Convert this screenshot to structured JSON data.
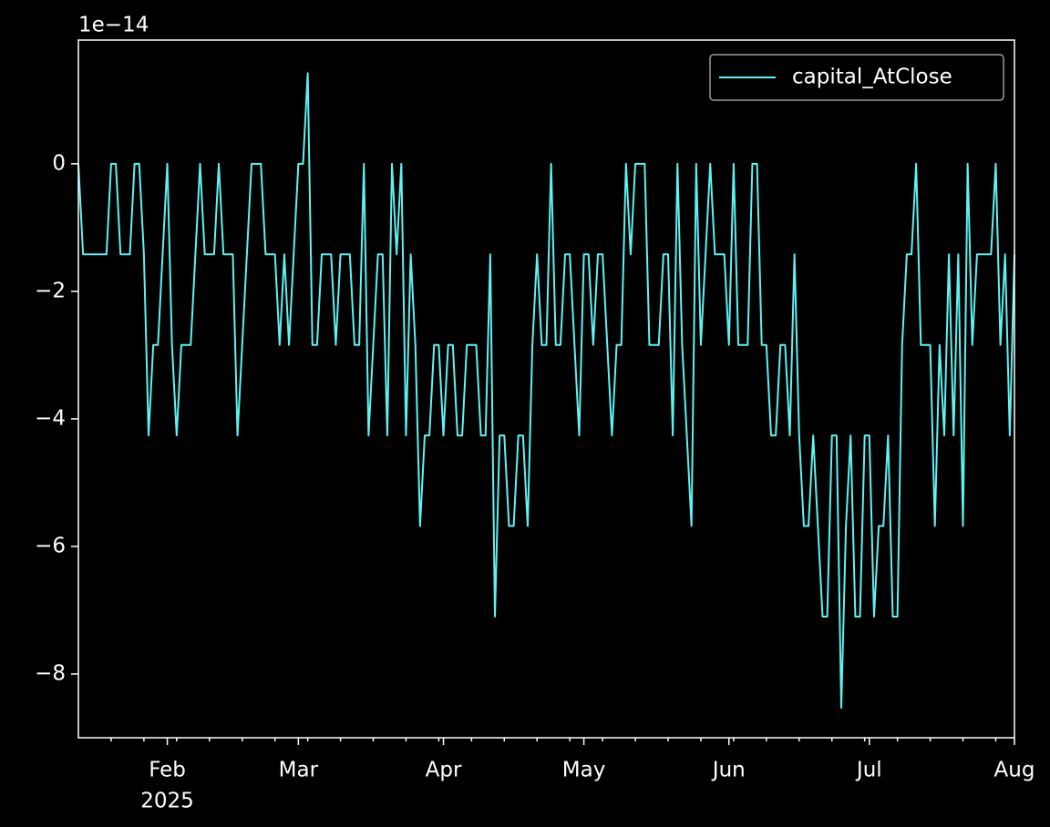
{
  "chart_data": {
    "type": "line",
    "y_offset_label": "1e−14",
    "x_offset_label": "2025",
    "legend": "upper right",
    "grid": false,
    "x": [
      "2025-01-13",
      "2025-01-14",
      "2025-01-15",
      "2025-01-16",
      "2025-01-17",
      "2025-01-18",
      "2025-01-19",
      "2025-01-20",
      "2025-01-21",
      "2025-01-22",
      "2025-01-23",
      "2025-01-24",
      "2025-01-25",
      "2025-01-26",
      "2025-01-27",
      "2025-01-28",
      "2025-01-29",
      "2025-01-30",
      "2025-01-31",
      "2025-02-01",
      "2025-02-02",
      "2025-02-03",
      "2025-02-04",
      "2025-02-05",
      "2025-02-06",
      "2025-02-07",
      "2025-02-08",
      "2025-02-09",
      "2025-02-10",
      "2025-02-11",
      "2025-02-12",
      "2025-02-13",
      "2025-02-14",
      "2025-02-15",
      "2025-02-16",
      "2025-02-17",
      "2025-02-18",
      "2025-02-19",
      "2025-02-20",
      "2025-02-21",
      "2025-02-22",
      "2025-02-23",
      "2025-02-24",
      "2025-02-25",
      "2025-02-26",
      "2025-02-27",
      "2025-02-28",
      "2025-03-01",
      "2025-03-02",
      "2025-03-03",
      "2025-03-04",
      "2025-03-05",
      "2025-03-06",
      "2025-03-07",
      "2025-03-08",
      "2025-03-09",
      "2025-03-10",
      "2025-03-11",
      "2025-03-12",
      "2025-03-13",
      "2025-03-14",
      "2025-03-15",
      "2025-03-16",
      "2025-03-17",
      "2025-03-18",
      "2025-03-19",
      "2025-03-20",
      "2025-03-21",
      "2025-03-22",
      "2025-03-23",
      "2025-03-24",
      "2025-03-25",
      "2025-03-26",
      "2025-03-27",
      "2025-03-28",
      "2025-03-29",
      "2025-03-30",
      "2025-03-31",
      "2025-04-01",
      "2025-04-02",
      "2025-04-03",
      "2025-04-04",
      "2025-04-05",
      "2025-04-06",
      "2025-04-07",
      "2025-04-08",
      "2025-04-09",
      "2025-04-10",
      "2025-04-11",
      "2025-04-12",
      "2025-04-13",
      "2025-04-14",
      "2025-04-15",
      "2025-04-16",
      "2025-04-17",
      "2025-04-18",
      "2025-04-19",
      "2025-04-20",
      "2025-04-21",
      "2025-04-22",
      "2025-04-23",
      "2025-04-24",
      "2025-04-25",
      "2025-04-26",
      "2025-04-27",
      "2025-04-28",
      "2025-04-29",
      "2025-04-30",
      "2025-05-01",
      "2025-05-02",
      "2025-05-03",
      "2025-05-04",
      "2025-05-05",
      "2025-05-06",
      "2025-05-07",
      "2025-05-08",
      "2025-05-09",
      "2025-05-10",
      "2025-05-11",
      "2025-05-12",
      "2025-05-13",
      "2025-05-14",
      "2025-05-15",
      "2025-05-16",
      "2025-05-17",
      "2025-05-18",
      "2025-05-19",
      "2025-05-20",
      "2025-05-21",
      "2025-05-22",
      "2025-05-23",
      "2025-05-24",
      "2025-05-25",
      "2025-05-26",
      "2025-05-27",
      "2025-05-28",
      "2025-05-29",
      "2025-05-30",
      "2025-05-31",
      "2025-06-01",
      "2025-06-02",
      "2025-06-03",
      "2025-06-04",
      "2025-06-05",
      "2025-06-06",
      "2025-06-07",
      "2025-06-08",
      "2025-06-09",
      "2025-06-10",
      "2025-06-11",
      "2025-06-12",
      "2025-06-13",
      "2025-06-14",
      "2025-06-15",
      "2025-06-16",
      "2025-06-17",
      "2025-06-18",
      "2025-06-19",
      "2025-06-20",
      "2025-06-21",
      "2025-06-22",
      "2025-06-23",
      "2025-06-24",
      "2025-06-25",
      "2025-06-26",
      "2025-06-27",
      "2025-06-28",
      "2025-06-29",
      "2025-06-30",
      "2025-07-01",
      "2025-07-02",
      "2025-07-03",
      "2025-07-04",
      "2025-07-05",
      "2025-07-06",
      "2025-07-07",
      "2025-07-08",
      "2025-07-09",
      "2025-07-10",
      "2025-07-11",
      "2025-07-12",
      "2025-07-13",
      "2025-07-14",
      "2025-07-15",
      "2025-07-16",
      "2025-07-17",
      "2025-07-18",
      "2025-07-19",
      "2025-07-20",
      "2025-07-21",
      "2025-07-22",
      "2025-07-23",
      "2025-07-24",
      "2025-07-25",
      "2025-07-26",
      "2025-07-27",
      "2025-07-28",
      "2025-07-29",
      "2025-07-30",
      "2025-07-31",
      "2025-08-01"
    ],
    "series": [
      {
        "name": "capital_AtClose",
        "color": "#5ef3f3",
        "values": [
          0,
          -1.42,
          -1.42,
          -1.42,
          -1.42,
          -1.42,
          -1.42,
          0,
          0,
          -1.42,
          -1.42,
          -1.42,
          0,
          0,
          -1.42,
          -4.26,
          -2.84,
          -2.84,
          -1.42,
          0,
          -2.84,
          -4.26,
          -2.84,
          -2.84,
          -2.84,
          -1.42,
          0,
          -1.42,
          -1.42,
          -1.42,
          0,
          -1.42,
          -1.42,
          -1.42,
          -4.26,
          -2.84,
          -1.42,
          0,
          0,
          0,
          -1.42,
          -1.42,
          -1.42,
          -2.84,
          -1.42,
          -2.84,
          -1.42,
          0,
          0,
          1.42,
          -2.84,
          -2.84,
          -1.42,
          -1.42,
          -1.42,
          -2.84,
          -1.42,
          -1.42,
          -1.42,
          -2.84,
          -2.84,
          0,
          -4.26,
          -2.84,
          -1.42,
          -1.42,
          -4.26,
          0,
          -1.42,
          0,
          -4.26,
          -1.42,
          -2.84,
          -5.68,
          -4.26,
          -4.26,
          -2.84,
          -2.84,
          -4.26,
          -2.84,
          -2.84,
          -4.26,
          -4.26,
          -2.84,
          -2.84,
          -2.84,
          -4.26,
          -4.26,
          -1.42,
          -7.1,
          -4.26,
          -4.26,
          -5.68,
          -5.68,
          -4.26,
          -4.26,
          -5.68,
          -2.84,
          -1.42,
          -2.84,
          -2.84,
          0,
          -2.84,
          -2.84,
          -1.42,
          -1.42,
          -2.84,
          -4.26,
          -1.42,
          -1.42,
          -2.84,
          -1.42,
          -1.42,
          -2.84,
          -4.26,
          -2.84,
          -2.84,
          0,
          -1.42,
          0,
          0,
          0,
          -2.84,
          -2.84,
          -2.84,
          -1.42,
          -1.42,
          -4.26,
          0,
          -2.84,
          -4.26,
          -5.68,
          0,
          -2.84,
          -1.42,
          0,
          -1.42,
          -1.42,
          -1.42,
          -2.84,
          0,
          -2.84,
          -2.84,
          -2.84,
          0,
          0,
          -2.84,
          -2.84,
          -4.26,
          -4.26,
          -2.84,
          -2.84,
          -4.26,
          -1.42,
          -4.26,
          -5.68,
          -5.68,
          -4.26,
          -5.68,
          -7.1,
          -7.1,
          -4.26,
          -4.26,
          -8.53,
          -5.68,
          -4.26,
          -7.1,
          -7.1,
          -4.26,
          -4.26,
          -7.1,
          -5.68,
          -5.68,
          -4.26,
          -7.1,
          -7.1,
          -2.84,
          -1.42,
          -1.42,
          0,
          -2.84,
          -2.84,
          -2.84,
          -5.68,
          -2.84,
          -4.26,
          -1.42,
          -4.26,
          -1.42,
          -5.68,
          0,
          -2.84,
          -1.42,
          -1.42,
          -1.42,
          -1.42,
          0,
          -2.84,
          -1.42,
          -4.26,
          -1.42
        ]
      }
    ],
    "xlim": [
      "2025-01-13",
      "2025-08-01"
    ],
    "xticks": [
      {
        "value": "2025-02-01",
        "label": "Feb"
      },
      {
        "value": "2025-03-01",
        "label": "Mar"
      },
      {
        "value": "2025-04-01",
        "label": "Apr"
      },
      {
        "value": "2025-05-01",
        "label": "May"
      },
      {
        "value": "2025-06-01",
        "label": "Jun"
      },
      {
        "value": "2025-07-01",
        "label": "Jul"
      },
      {
        "value": "2025-08-01",
        "label": "Aug"
      }
    ],
    "xminorticks": [
      "2025-01-20",
      "2025-01-27",
      "2025-02-03",
      "2025-02-10",
      "2025-02-17",
      "2025-02-24",
      "2025-03-03",
      "2025-03-10",
      "2025-03-17",
      "2025-03-24",
      "2025-03-31",
      "2025-04-07",
      "2025-04-14",
      "2025-04-21",
      "2025-04-28",
      "2025-05-05",
      "2025-05-12",
      "2025-05-19",
      "2025-05-26",
      "2025-06-02",
      "2025-06-09",
      "2025-06-16",
      "2025-06-23",
      "2025-06-30",
      "2025-07-07",
      "2025-07-14",
      "2025-07-21",
      "2025-07-28"
    ],
    "ylim": [
      -9,
      1.94
    ],
    "yticks": [
      {
        "value": -8,
        "label": "−8"
      },
      {
        "value": -6,
        "label": "−6"
      },
      {
        "value": -4,
        "label": "−4"
      },
      {
        "value": -2,
        "label": "−2"
      },
      0
    ]
  }
}
